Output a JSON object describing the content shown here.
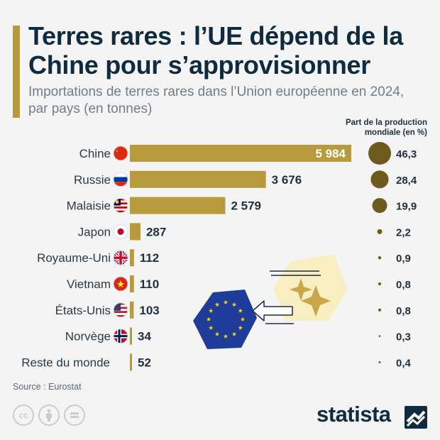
{
  "title": "Terres rares : l’UE dépend de la Chine pour s’approvisionner",
  "subtitle": "Importations de terres rares dans l’Union européenne en 2024, par pays (en tonnes)",
  "share_header": "Part de la production mondiale (en %)",
  "source": "Source : Eurostat",
  "brand": "statista",
  "icons": [
    "cc-icon",
    "by-person-icon",
    "equals-nd-icon",
    "eu-flag-icon",
    "arrow-left-icon",
    "sparkle-icon",
    "statista-logo-icon"
  ],
  "colors": {
    "bar": "#b79a3c",
    "bubble": "#6e5a1c",
    "accent": "#b79a3c",
    "eu_blue": "#1f3c9b",
    "eu_star": "#ffd800",
    "sparkle_bg": "#f8eec1"
  },
  "chart_data": {
    "type": "bar",
    "orientation": "horizontal",
    "categories": [
      "Chine",
      "Russie",
      "Malaisie",
      "Japon",
      "Royaume-Uni",
      "Vietnam",
      "États-Unis",
      "Norvège",
      "Reste du monde"
    ],
    "flags": [
      "china",
      "russia",
      "malaysia",
      "japan",
      "uk",
      "vietnam",
      "usa",
      "norway",
      ""
    ],
    "values": [
      5984,
      3676,
      2579,
      287,
      112,
      110,
      103,
      34,
      52
    ],
    "value_labels": [
      "5 984",
      "3 676",
      "2 579",
      "287",
      "112",
      "110",
      "103",
      "34",
      "52"
    ],
    "share_values": [
      46.3,
      28.4,
      19.9,
      2.2,
      0.9,
      0.8,
      0.8,
      0.3,
      0.4
    ],
    "share_labels": [
      "46,3",
      "28,4",
      "19,9",
      "2,2",
      "0,9",
      "0,8",
      "0,8",
      "0,3",
      "0,4"
    ],
    "xlim": [
      0,
      5984
    ],
    "grid": false
  }
}
